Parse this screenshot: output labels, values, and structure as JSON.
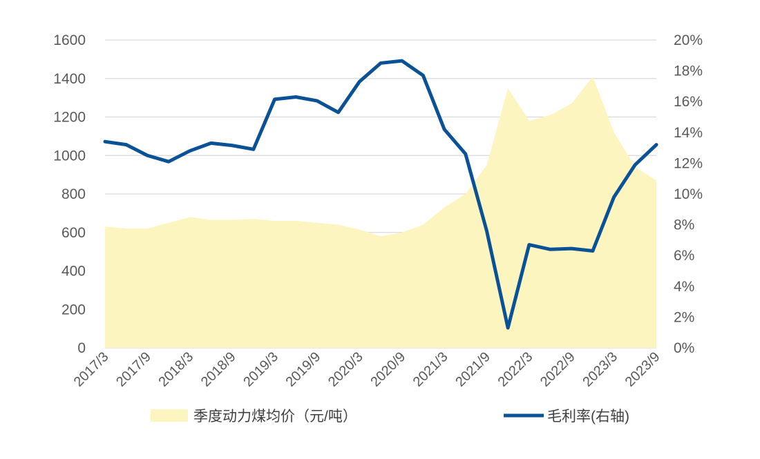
{
  "chart_data": {
    "type": "line",
    "title": "",
    "x": [
      "2017/3",
      "2017/6",
      "2017/9",
      "2017/12",
      "2018/3",
      "2018/6",
      "2018/9",
      "2018/12",
      "2019/3",
      "2019/6",
      "2019/9",
      "2019/12",
      "2020/3",
      "2020/6",
      "2020/9",
      "2020/12",
      "2021/3",
      "2021/6",
      "2021/9",
      "2021/12",
      "2022/3",
      "2022/6",
      "2022/9",
      "2022/12",
      "2023/3",
      "2023/6",
      "2023/9"
    ],
    "x_tick_labels": [
      "2017/3",
      "2017/9",
      "2018/3",
      "2018/9",
      "2019/3",
      "2019/9",
      "2020/3",
      "2020/9",
      "2021/3",
      "2021/9",
      "2022/3",
      "2022/9",
      "2023/3",
      "2023/9"
    ],
    "left_axis": {
      "min": 0,
      "max": 1600,
      "step": 200,
      "ticks": [
        "0",
        "200",
        "400",
        "600",
        "800",
        "1000",
        "1200",
        "1400",
        "1600"
      ]
    },
    "right_axis": {
      "min": 0,
      "max": 20,
      "step": 2,
      "ticks": [
        "0%",
        "2%",
        "4%",
        "6%",
        "8%",
        "10%",
        "12%",
        "14%",
        "16%",
        "18%",
        "20%"
      ]
    },
    "grid": true,
    "legend_position": "bottom",
    "series": [
      {
        "name": "季度动力煤均价（元/吨）",
        "type": "area",
        "axis": "left",
        "color": "#fdf5c0",
        "values": [
          630,
          620,
          620,
          650,
          680,
          665,
          665,
          670,
          660,
          660,
          650,
          640,
          615,
          580,
          600,
          640,
          730,
          800,
          950,
          1350,
          1180,
          1210,
          1270,
          1410,
          1120,
          940,
          870
        ]
      },
      {
        "name": "毛利率(右轴)",
        "type": "line",
        "axis": "right",
        "color": "#0a5196",
        "values": [
          13.4,
          13.2,
          12.5,
          12.1,
          12.8,
          13.3,
          13.15,
          12.9,
          16.15,
          16.3,
          16.05,
          15.3,
          17.3,
          18.5,
          18.65,
          17.7,
          14.2,
          12.6,
          7.6,
          1.3,
          6.7,
          6.4,
          6.45,
          6.3,
          9.8,
          11.9,
          13.2
        ]
      }
    ]
  }
}
